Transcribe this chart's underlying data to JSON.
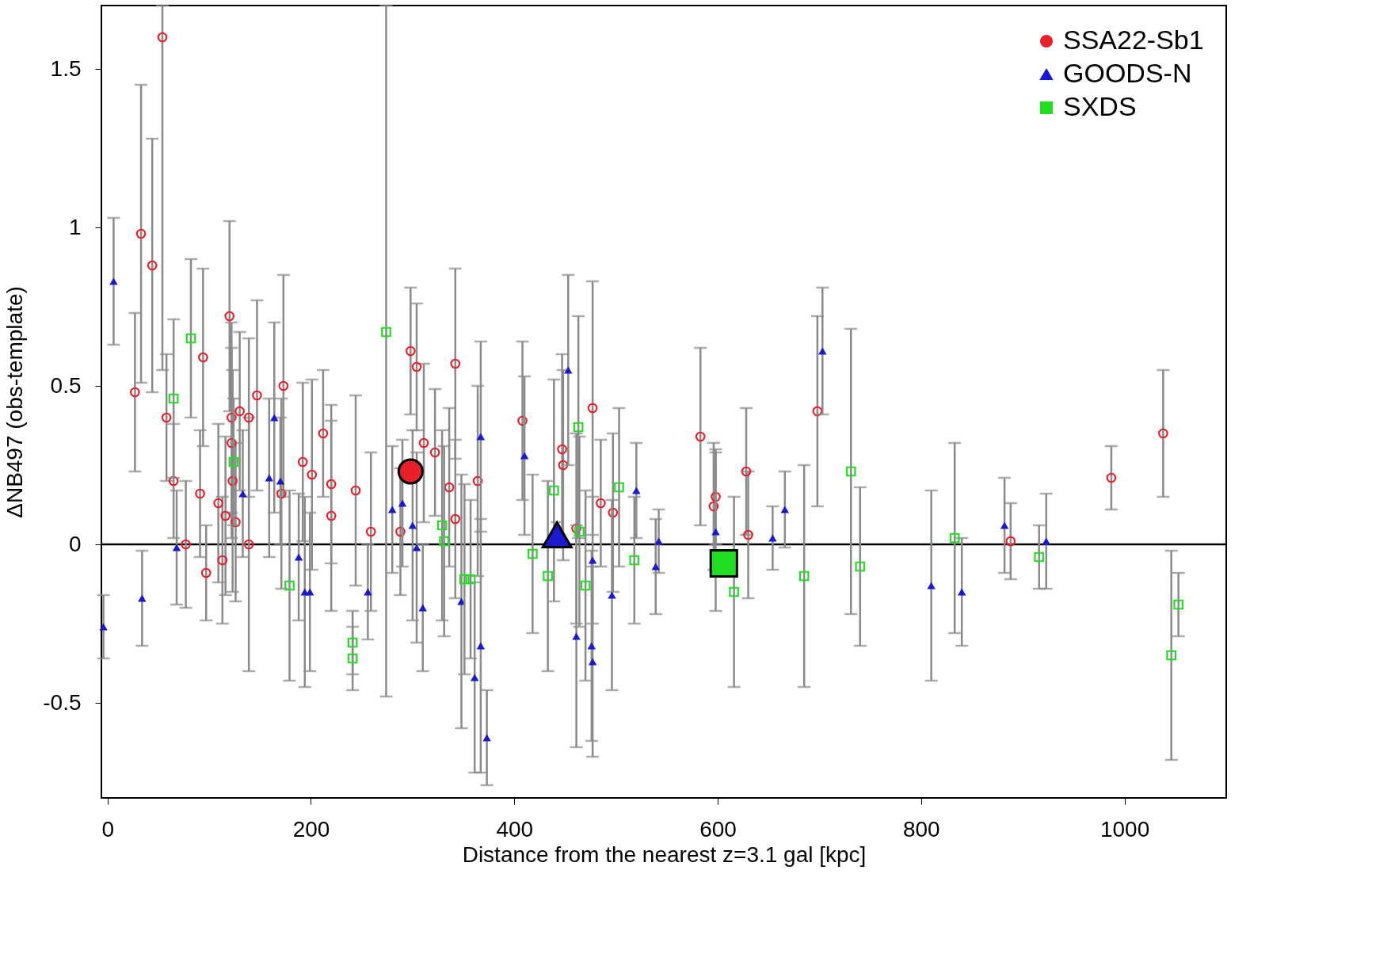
{
  "chart_data": {
    "type": "scatter",
    "xlabel": "Distance from the nearest z=3.1 gal [kpc]",
    "ylabel": "ΔNB497 (obs-template)",
    "xlim": [
      -6,
      1100
    ],
    "ylim": [
      -0.8,
      1.7
    ],
    "xticks": [
      0,
      200,
      400,
      600,
      800,
      1000
    ],
    "yticks": [
      -0.5,
      0,
      0.5,
      1,
      1.5
    ],
    "grid": false,
    "legend": "top right",
    "ref_lines": [
      {
        "axis": "y",
        "value": 0,
        "color": "#000000"
      }
    ],
    "series": [
      {
        "name": "SSA22-Sb1",
        "color": "#e8202a",
        "marker": "circle",
        "x": [
          54,
          27,
          33,
          44,
          58,
          65,
          77,
          91,
          94,
          97,
          109,
          113,
          116,
          120,
          122,
          122,
          123,
          126,
          130,
          139,
          139,
          147,
          173,
          171,
          192,
          201,
          212,
          220,
          220,
          244,
          259,
          288,
          298,
          304,
          311,
          322,
          336,
          342,
          342,
          364,
          408,
          447,
          448,
          461,
          477,
          485,
          497,
          583,
          596,
          598,
          628,
          630,
          698,
          888,
          987,
          1038
        ],
        "values": [
          1.6,
          0.48,
          0.98,
          0.88,
          0.4,
          0.2,
          0.0,
          0.16,
          0.59,
          -0.09,
          0.13,
          -0.05,
          0.09,
          0.72,
          0.4,
          0.32,
          0.2,
          0.07,
          0.42,
          0.4,
          0.0,
          0.47,
          0.5,
          0.16,
          0.26,
          0.22,
          0.35,
          0.19,
          0.09,
          0.17,
          0.04,
          0.04,
          0.61,
          0.56,
          0.32,
          0.29,
          0.18,
          0.57,
          0.08,
          0.2,
          0.39,
          0.3,
          0.25,
          0.05,
          0.43,
          0.13,
          0.1,
          0.34,
          0.12,
          0.15,
          0.23,
          0.03,
          0.42,
          0.01,
          0.21,
          0.35
        ],
        "errors": [
          [
            0.55,
            1.7
          ],
          0.25,
          0.47,
          0.4,
          0.2,
          0.18,
          0.2,
          0.2,
          0.28,
          0.15,
          0.25,
          0.2,
          0.25,
          0.3,
          0.3,
          0.3,
          0.35,
          0.25,
          0.25,
          0.25,
          0.4,
          0.3,
          0.35,
          0.3,
          0.25,
          0.3,
          0.2,
          0.25,
          0.3,
          0.3,
          0.25,
          0.2,
          0.2,
          0.2,
          0.25,
          0.2,
          0.25,
          0.3,
          0.25,
          0.3,
          0.25,
          0.3,
          0.3,
          0.3,
          0.4,
          0.2,
          0.25,
          0.28,
          0.2,
          0.15,
          0.2,
          0.2,
          0.3,
          0.12,
          0.1,
          0.2
        ]
      },
      {
        "name": "GOODS-N",
        "color": "#1a1acc",
        "marker": "triangle",
        "x": [
          6,
          -4,
          34,
          68,
          133,
          164,
          159,
          170,
          188,
          194,
          199,
          256,
          280,
          290,
          300,
          304,
          310,
          348,
          361,
          367,
          367,
          373,
          410,
          453,
          461,
          477,
          476,
          477,
          496,
          520,
          542,
          539,
          598,
          654,
          666,
          703,
          810,
          840,
          882,
          923
        ],
        "values": [
          0.83,
          -0.26,
          -0.17,
          -0.01,
          0.16,
          0.4,
          0.21,
          0.2,
          -0.04,
          -0.15,
          -0.15,
          -0.15,
          0.11,
          0.13,
          0.06,
          -0.01,
          -0.2,
          -0.18,
          -0.42,
          0.34,
          -0.32,
          -0.61,
          0.28,
          0.55,
          -0.29,
          -0.05,
          -0.32,
          -0.37,
          -0.16,
          0.17,
          0.01,
          -0.07,
          0.04,
          0.02,
          0.11,
          0.61,
          -0.13,
          -0.15,
          0.06,
          0.01
        ],
        "errors": [
          0.2,
          0.1,
          0.15,
          0.18,
          0.2,
          0.3,
          0.25,
          0.2,
          0.2,
          0.3,
          0.25,
          0.15,
          0.2,
          0.2,
          0.3,
          0.3,
          0.2,
          0.4,
          0.3,
          0.3,
          0.4,
          0.15,
          0.25,
          0.3,
          0.35,
          0.2,
          0.3,
          0.3,
          0.3,
          0.15,
          0.1,
          0.15,
          0.25,
          0.1,
          0.12,
          0.2,
          0.3,
          0.17,
          0.15,
          0.15
        ]
      },
      {
        "name": "SXDS",
        "color": "#22dd22",
        "marker": "square",
        "x": [
          82,
          65,
          124,
          179,
          241,
          241,
          274,
          329,
          331,
          351,
          357,
          418,
          433,
          439,
          463,
          464,
          470,
          503,
          518,
          616,
          685,
          731,
          740,
          833,
          916,
          1046,
          1053
        ],
        "values": [
          0.65,
          0.46,
          0.26,
          -0.13,
          -0.31,
          -0.36,
          0.67,
          0.06,
          0.01,
          -0.11,
          -0.11,
          -0.03,
          -0.1,
          0.17,
          0.37,
          0.04,
          -0.13,
          0.18,
          -0.05,
          -0.15,
          -0.1,
          0.23,
          -0.07,
          0.02,
          -0.04,
          -0.35,
          -0.19
        ],
        "errors": [
          0.25,
          0.25,
          0.2,
          0.3,
          0.1,
          0.1,
          [
            -0.48,
            1.7
          ],
          0.3,
          0.3,
          0.3,
          0.25,
          0.25,
          0.3,
          0.35,
          0.35,
          0.3,
          0.3,
          0.25,
          0.2,
          0.3,
          0.35,
          0.45,
          0.25,
          0.3,
          0.1,
          0.33,
          0.1
        ]
      },
      {
        "color": "#e8202a",
        "marker": "circle",
        "x": [
          298
        ],
        "values": [
          0.23
        ],
        "errors": [
          0.03
        ]
      },
      {
        "color": "#1a1acc",
        "marker": "triangle",
        "x": [
          442
        ],
        "values": [
          0.03
        ],
        "errors": [
          0.04
        ]
      },
      {
        "color": "#22dd22",
        "marker": "square",
        "x": [
          606
        ],
        "values": [
          -0.06
        ],
        "errors": [
          0.04
        ]
      }
    ]
  }
}
